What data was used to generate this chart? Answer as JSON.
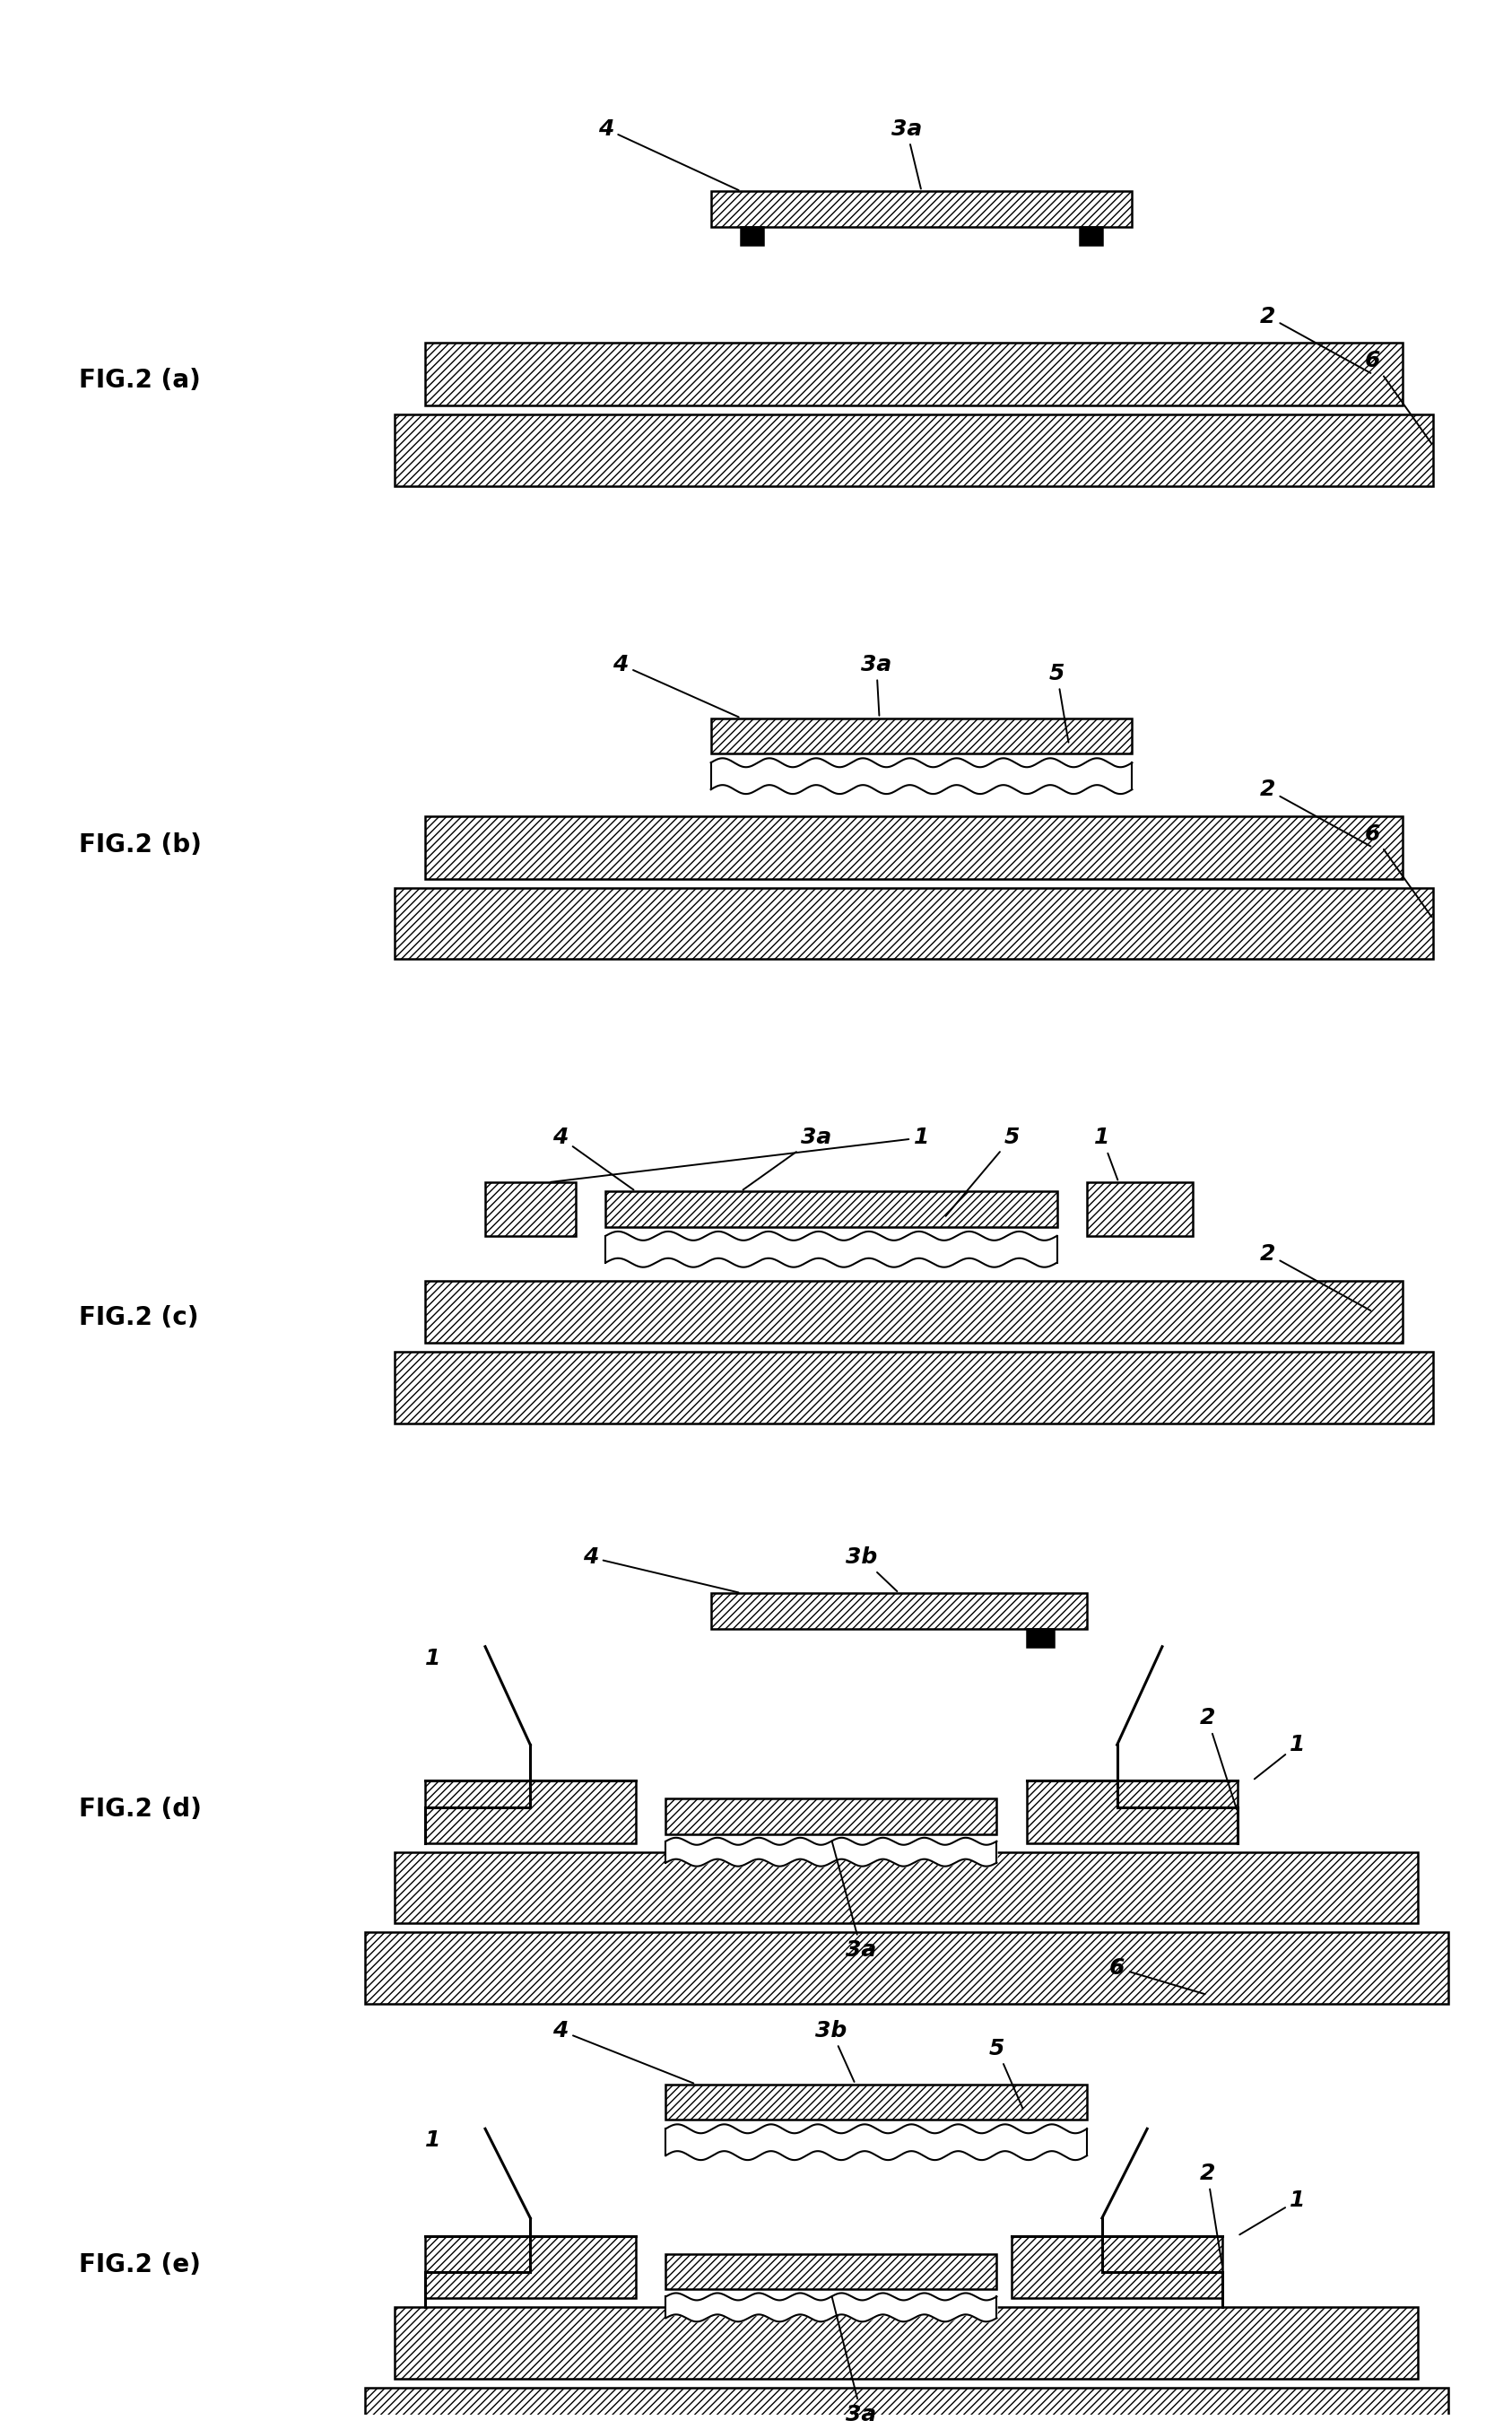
{
  "bg_color": "#ffffff",
  "line_color": "#000000",
  "fig_labels": [
    "FIG.2 (a)",
    "FIG.2 (b)",
    "FIG.2 (c)",
    "FIG.2 (d)",
    "FIG.2 (e)"
  ],
  "label_fontsize": 20,
  "annot_fontsize": 18,
  "fig_width": 16.86,
  "fig_height": 27.08,
  "lw": 1.8,
  "lw_thick": 2.2
}
